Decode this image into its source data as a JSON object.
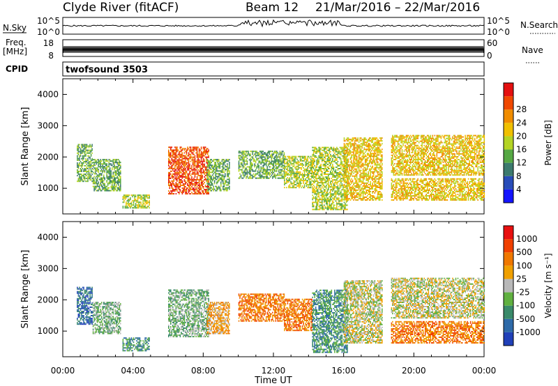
{
  "header": {
    "station": "Clyde River (fitACF)",
    "beam": "Beam 12",
    "date_range": "21/Mar/2016 – 22/Mar/2016"
  },
  "summary": {
    "nsky_label": "N.Sky",
    "nsky_ticks": [
      "10^5",
      "10^0"
    ],
    "nsearch_label": "N.Search",
    "nsearch_ticks": [
      "10^5",
      "10^0"
    ],
    "freq_label": "Freq.",
    "freq_unit": "[MHz]",
    "freq_ticks": [
      "18",
      "8"
    ],
    "nave_label": "Nave",
    "nave_ticks": [
      "60",
      "0"
    ],
    "cpid_label": "CPID",
    "cpid_value": "twofsound 3503"
  },
  "chart_data": [
    {
      "type": "heatmap",
      "name": "power",
      "xlabel": "Time UT",
      "ylabel": "Slant Range [km]",
      "x_ticks": [
        "00:00",
        "04:00",
        "08:00",
        "12:00",
        "16:00",
        "20:00",
        "00:00"
      ],
      "xlim_hours": [
        0,
        24
      ],
      "ylim_km": [
        180,
        4500
      ],
      "y_ticks": [
        1000,
        2000,
        3000,
        4000
      ],
      "colorbar": {
        "label": "Power [dB]",
        "ticks": [
          "4",
          "8",
          "12",
          "16",
          "20",
          "24",
          "28"
        ],
        "colors": [
          "#1414ff",
          "#284cb8",
          "#3c7a6e",
          "#56a844",
          "#b4d424",
          "#f0c000",
          "#f08c00",
          "#f04800",
          "#e41010"
        ]
      },
      "echo_regions": [
        {
          "t": [
            0.8,
            1.7
          ],
          "r": [
            1200,
            2400
          ],
          "level": 3
        },
        {
          "t": [
            1.7,
            3.3
          ],
          "r": [
            900,
            1900
          ],
          "level": 3
        },
        {
          "t": [
            3.4,
            4.9
          ],
          "r": [
            350,
            800
          ],
          "level": 4
        },
        {
          "t": [
            6.0,
            8.3
          ],
          "r": [
            800,
            2300
          ],
          "level": 7
        },
        {
          "t": [
            8.2,
            9.5
          ],
          "r": [
            900,
            1900
          ],
          "level": 3
        },
        {
          "t": [
            10.0,
            12.6
          ],
          "r": [
            1300,
            2200
          ],
          "level": 3
        },
        {
          "t": [
            12.6,
            14.2
          ],
          "r": [
            1000,
            2000
          ],
          "level": 4
        },
        {
          "t": [
            14.2,
            16.2
          ],
          "r": [
            300,
            2300
          ],
          "level": 4
        },
        {
          "t": [
            16.0,
            18.2
          ],
          "r": [
            600,
            2600
          ],
          "level": 5
        },
        {
          "t": [
            18.7,
            24.0
          ],
          "r": [
            1400,
            2700
          ],
          "level": 5
        },
        {
          "t": [
            18.7,
            24.0
          ],
          "r": [
            600,
            1300
          ],
          "level": 5
        }
      ]
    },
    {
      "type": "heatmap",
      "name": "velocity",
      "xlabel": "Time UT",
      "ylabel": "Slant Range [km]",
      "x_ticks": [
        "00:00",
        "04:00",
        "08:00",
        "12:00",
        "16:00",
        "20:00",
        "00:00"
      ],
      "xlim_hours": [
        0,
        24
      ],
      "ylim_km": [
        180,
        4500
      ],
      "y_ticks": [
        1000,
        2000,
        3000,
        4000
      ],
      "colorbar": {
        "label": "Velocity [m s⁻¹]",
        "ticks": [
          "1000",
          "500",
          "100",
          "25",
          "-25",
          "-100",
          "-500",
          "-1000"
        ],
        "colors": [
          "#2040b8",
          "#2e6aa8",
          "#3a8a6a",
          "#60b040",
          "#b8b8b8",
          "#f0a000",
          "#f07800",
          "#f04000",
          "#e81010"
        ]
      },
      "echo_regions": [
        {
          "t": [
            0.8,
            1.7
          ],
          "r": [
            1200,
            2400
          ],
          "level": 1
        },
        {
          "t": [
            1.7,
            3.3
          ],
          "r": [
            900,
            1900
          ],
          "level": 3
        },
        {
          "t": [
            3.4,
            4.9
          ],
          "r": [
            350,
            800
          ],
          "level": 2
        },
        {
          "t": [
            6.0,
            8.3
          ],
          "r": [
            800,
            2300
          ],
          "level": 3
        },
        {
          "t": [
            8.2,
            9.5
          ],
          "r": [
            900,
            1900
          ],
          "level": 5
        },
        {
          "t": [
            10.0,
            12.6
          ],
          "r": [
            1300,
            2200
          ],
          "level": 6
        },
        {
          "t": [
            12.6,
            14.2
          ],
          "r": [
            1000,
            2000
          ],
          "level": 6
        },
        {
          "t": [
            14.2,
            16.2
          ],
          "r": [
            300,
            2300
          ],
          "level": 2
        },
        {
          "t": [
            16.0,
            18.2
          ],
          "r": [
            600,
            2600
          ],
          "level": 4
        },
        {
          "t": [
            18.7,
            24.0
          ],
          "r": [
            1400,
            2700
          ],
          "level": 4
        },
        {
          "t": [
            18.7,
            24.0
          ],
          "r": [
            600,
            1300
          ],
          "level": 6
        }
      ]
    }
  ]
}
